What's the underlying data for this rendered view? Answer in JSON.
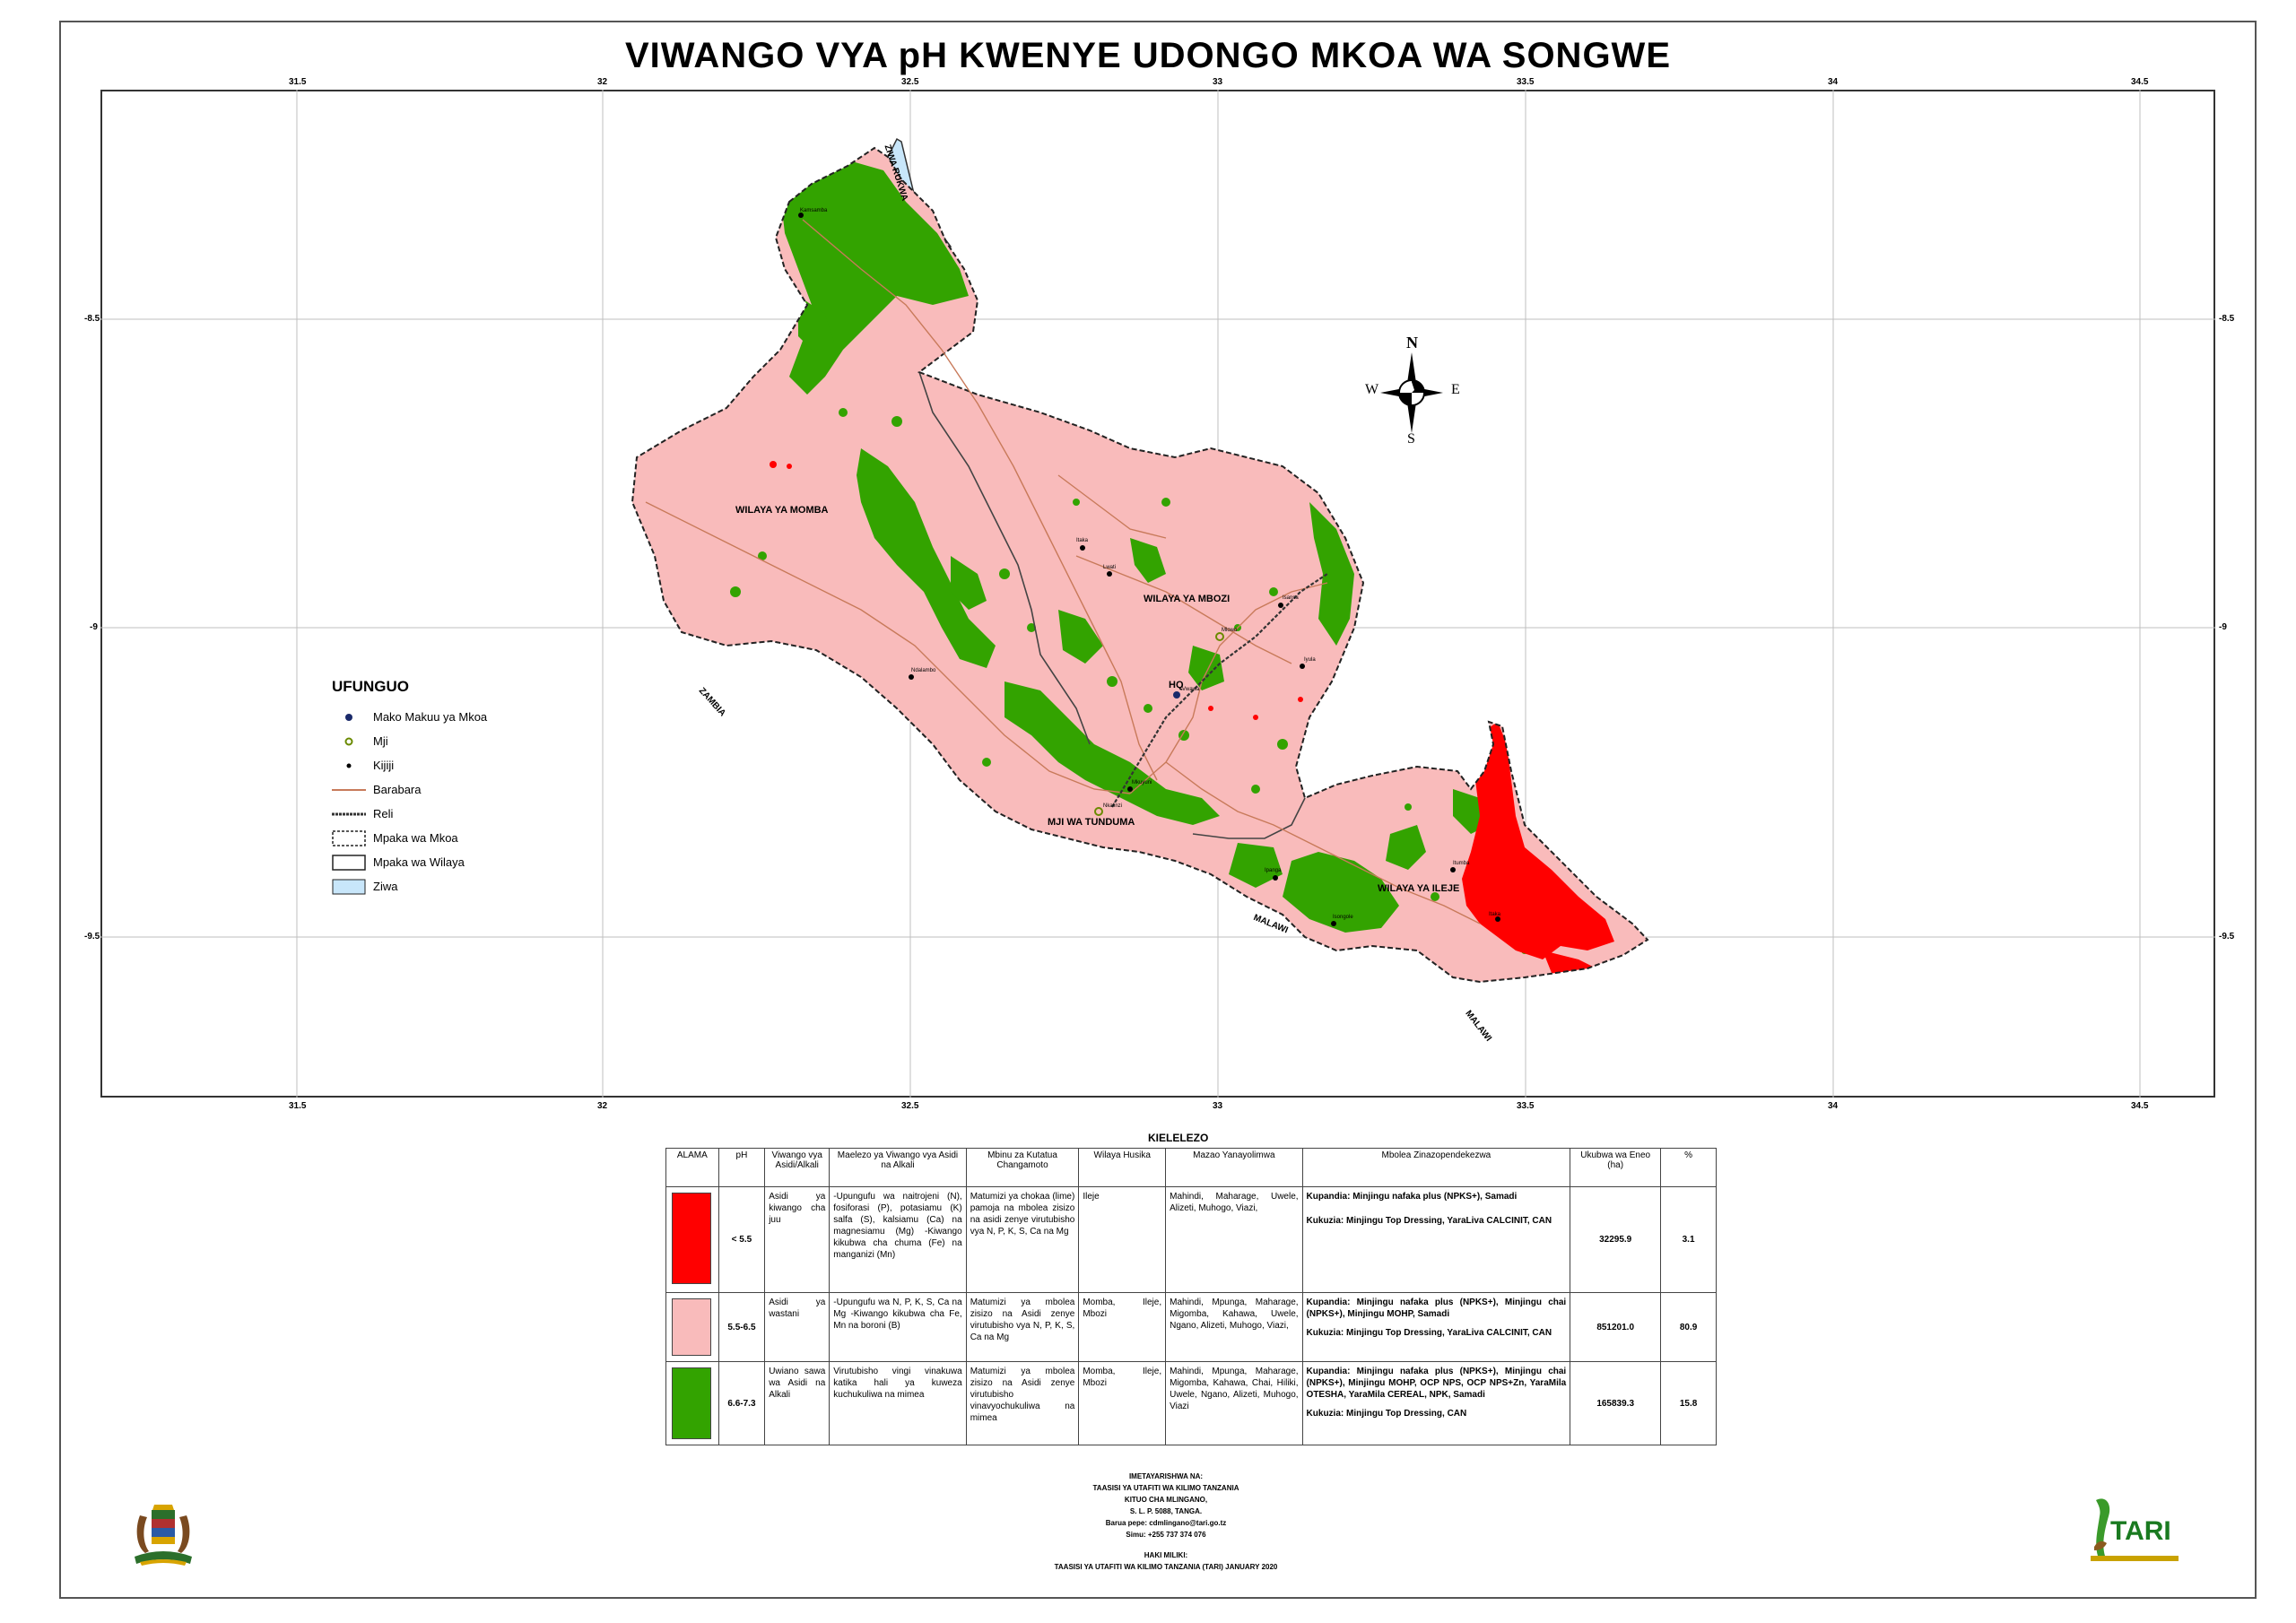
{
  "title": "VIWANGO VYA pH KWENYE UDONGO MKOA WA SONGWE",
  "axes": {
    "lon_ticks": [
      "31.5",
      "32",
      "32.5",
      "33",
      "33.5",
      "34",
      "34.5"
    ],
    "lat_ticks": [
      "-8.5",
      "-9",
      "-9.5"
    ]
  },
  "map_labels": {
    "lake": "ZIWA RUKWA",
    "mpp_pink": "WILAYA YA MOMBA",
    "mbozi": "WILAYA YA MBOZI",
    "ileje": "WILAYA YA ILEJE",
    "tunduma": "MJI WA TUNDUMA",
    "zambia": "ZAMBIA",
    "malawi1": "MALAWI",
    "malawi2": "MALAWI",
    "hq": "HQ",
    "towns": [
      "Kamsamba",
      "Itaka",
      "Mlowo",
      "Vwawa",
      "Isongole",
      "Itumba",
      "Ndalambo",
      "Ipanga",
      "Itaka",
      "Isansa",
      "Iyula",
      "Nkalinzi",
      "Mkuyuni",
      "Lwati"
    ]
  },
  "compass": {
    "n": "N",
    "s": "S",
    "e": "E",
    "w": "W"
  },
  "legend": {
    "title": "UFUNGUO",
    "items": [
      {
        "label": "Mako Makuu ya Mkoa",
        "symbol": "hq-dot-icon"
      },
      {
        "label": "Mji",
        "symbol": "town-circle-icon"
      },
      {
        "label": "Kijiji",
        "symbol": "village-dot-icon"
      },
      {
        "label": "Barabara",
        "symbol": "road-line-icon"
      },
      {
        "label": "Reli",
        "symbol": "railway-line-icon"
      },
      {
        "label": "Mpaka wa Mkoa",
        "symbol": "region-boundary-icon"
      },
      {
        "label": "Mpaka wa Wilaya",
        "symbol": "district-boundary-icon"
      },
      {
        "label": "Ziwa",
        "symbol": "lake-fill-icon"
      }
    ]
  },
  "colors": {
    "acid_high": "#ff0000",
    "acid_mid": "#f9bbbb",
    "neutral": "#33a300",
    "lake": "#c8e6fa",
    "road": "#c87a5a"
  },
  "kielelezo": {
    "title": "KIELELEZO",
    "headers": [
      "ALAMA",
      "pH",
      "Viwango vya Asidi/Alkali",
      "Maelezo ya Viwango vya Asidi na Alkali",
      "Mbinu za Kutatua Changamoto",
      "Wilaya Husika",
      "Mazao Yanayolimwa",
      "Mbolea Zinazopendekezwa",
      "Ukubwa wa Eneo (ha)",
      "%"
    ],
    "rows": [
      {
        "color": "#ff0000",
        "ph": "< 5.5",
        "level": "Asidi ya kiwango cha juu",
        "desc": "-Upungufu wa naitrojeni (N), fosiforasi (P), potasiamu (K) salfa (S), kalsiamu (Ca) na magnesiamu (Mg) -Kiwango kikubwa cha chuma (Fe) na manganizi (Mn)",
        "method": "Matumizi ya chokaa (lime) pamoja na mbolea zisizo na asidi zenye virutubisho vya N, P, K, S, Ca na Mg",
        "district": "Ileje",
        "crops": "Mahindi, Maharage, Uwele, Alizeti, Muhogo, Viazi,",
        "fert_plant": "Kupandia: Minjingu nafaka plus (NPKS+), Samadi",
        "fert_top": "Kukuzia: Minjingu Top Dressing, YaraLiva CALCINIT, CAN",
        "area": "32295.9",
        "pct": "3.1"
      },
      {
        "color": "#f9bbbb",
        "ph": "5.5-6.5",
        "level": "Asidi ya wastani",
        "desc": "-Upungufu wa N, P, K, S, Ca na Mg -Kiwango kikubwa cha Fe, Mn na boroni (B)",
        "method": "Matumizi ya mbolea zisizo na Asidi zenye virutubisho vya N, P, K, S, Ca na Mg",
        "district": "Momba, Ileje, Mbozi",
        "crops": "Mahindi, Mpunga, Maharage, Migomba, Kahawa, Uwele, Ngano, Alizeti, Muhogo, Viazi,",
        "fert_plant": "Kupandia: Minjingu nafaka plus (NPKS+), Minjingu chai (NPKS+), Minjingu MOHP, Samadi",
        "fert_top": "Kukuzia: Minjingu Top Dressing, YaraLiva CALCINIT, CAN",
        "area": "851201.0",
        "pct": "80.9"
      },
      {
        "color": "#33a300",
        "ph": "6.6-7.3",
        "level": "Uwiano sawa wa Asidi na Alkali",
        "desc": "Virutubisho vingi vinakuwa katika hali ya kuweza kuchukuliwa na mimea",
        "method": "Matumizi ya mbolea zisizo na Asidi zenye virutubisho vinavyochukuliwa na mimea",
        "district": "Momba, Ileje, Mbozi",
        "crops": "Mahindi, Mpunga, Maharage, Migomba, Kahawa, Chai, Hiliki, Uwele, Ngano, Alizeti, Muhogo, Viazi",
        "fert_plant": "Kupandia: Minjingu nafaka plus (NPKS+), Minjingu chai (NPKS+), Minjingu MOHP, OCP NPS, OCP NPS+Zn, YaraMila OTESHA, YaraMila CEREAL, NPK, Samadi",
        "fert_top": "Kukuzia: Minjingu Top Dressing, CAN",
        "area": "165839.3",
        "pct": "15.8"
      }
    ]
  },
  "footer": {
    "prepared": "IMETAYARISHWA NA:",
    "org": "TAASISI YA UTAFITI WA KILIMO TANZANIA",
    "centre": "KITUO CHA MLINGANO,",
    "box": "S. L. P. 5088, TANGA.",
    "email": "Barua pepe: cdmlingano@tari.go.tz",
    "phone": "Simu: +255 737 374 076",
    "rights": "HAKI MILIKI:",
    "copyright": "TAASISI YA UTAFITI WA KILIMO TANZANIA (TARI) JANUARY 2020"
  },
  "logo": {
    "tari": "TARI"
  }
}
